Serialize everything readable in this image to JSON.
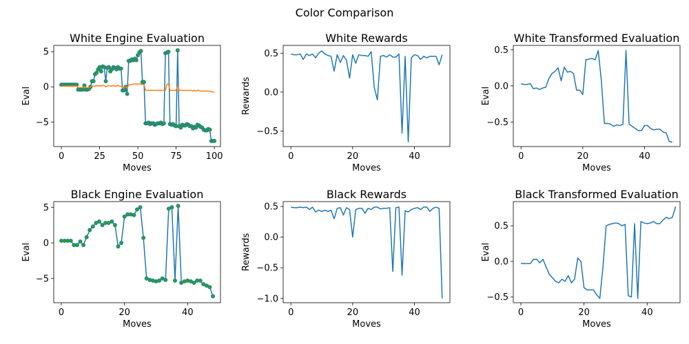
{
  "figure": {
    "suptitle": "Color Comparison"
  },
  "chart_data": [
    {
      "id": "white-engine",
      "type": "line",
      "title": "White Engine Evaluation",
      "xlabel": "Moves",
      "ylabel": "Eval",
      "xlim": [
        -5,
        104
      ],
      "ylim": [
        -8.5,
        5.9
      ],
      "xticks": [
        0,
        25,
        50,
        75,
        100
      ],
      "yticks": [
        -5,
        0,
        5
      ],
      "series": [
        {
          "color": "#1f77b4",
          "markers": true,
          "marker_fill": "#2ca02c",
          "values": [
            0.3,
            0.3,
            0.3,
            0.3,
            0.3,
            0.3,
            0.3,
            0.3,
            0.3,
            0.3,
            0.3,
            -0.4,
            -0.4,
            -0.4,
            -0.4,
            0.2,
            -0.4,
            -0.4,
            -0.3,
            0.0,
            0.8,
            0.8,
            1.8,
            2.0,
            2.5,
            2.8,
            2.2,
            2.9,
            2.8,
            0.8,
            2.7,
            2.8,
            2.2,
            2.5,
            2.8,
            2.7,
            2.5,
            2.8,
            2.6,
            2.6,
            -0.5,
            -0.5,
            0.0,
            -1.0,
            3.7,
            3.7,
            3.9,
            3.8,
            4.0,
            3.8,
            4.5,
            4.9,
            5.1,
            0.7,
            0.7,
            -5.2,
            -5.2,
            -5.1,
            -5.3,
            -5.2,
            -5.2,
            -5.4,
            -5.3,
            -5.2,
            -5.2,
            -5.1,
            -5.3,
            -5.2,
            4.8,
            4.9,
            5.0,
            -5.3,
            -5.4,
            -5.3,
            -5.5,
            -5.6,
            5.2,
            -5.6,
            -5.8,
            -5.4,
            -5.5,
            -5.5,
            -5.3,
            -5.4,
            -5.6,
            -5.6,
            -5.9,
            -5.7,
            -5.8,
            -5.4,
            -5.5,
            -5.7,
            -5.8,
            -6.1,
            -6.2,
            -6.2,
            -6.0,
            -6.1,
            -7.7,
            -7.7,
            -7.7
          ]
        },
        {
          "color": "#ff7f0e",
          "markers": false,
          "values": [
            0.1,
            0.1,
            0.1,
            0.1,
            0.1,
            0.1,
            0.1,
            0.1,
            0.1,
            0.1,
            0.1,
            -0.1,
            -0.1,
            -0.1,
            -0.1,
            0.0,
            -0.1,
            -0.1,
            -0.1,
            0.0,
            0.1,
            0.1,
            0.1,
            0.2,
            0.1,
            0.2,
            0.1,
            0.2,
            0.2,
            0.0,
            0.1,
            0.2,
            0.1,
            0.1,
            0.2,
            0.1,
            0.1,
            0.2,
            0.1,
            0.1,
            -0.1,
            -0.1,
            0.0,
            -0.2,
            0.3,
            0.3,
            0.3,
            0.4,
            0.4,
            0.4,
            0.4,
            0.4,
            0.4,
            0.3,
            0.3,
            -0.5,
            -0.5,
            -0.5,
            -0.5,
            -0.5,
            -0.5,
            -0.5,
            -0.5,
            -0.5,
            -0.5,
            -0.5,
            -0.5,
            -0.5,
            -0.5,
            0.4,
            0.4,
            -0.5,
            -0.5,
            -0.5,
            -0.5,
            -0.5,
            0.2,
            -0.5,
            -0.5,
            -0.5,
            -0.5,
            -0.5,
            -0.5,
            -0.5,
            -0.5,
            -0.5,
            -0.6,
            -0.5,
            -0.6,
            -0.5,
            -0.5,
            -0.6,
            -0.6,
            -0.6,
            -0.6,
            -0.6,
            -0.6,
            -0.6,
            -0.7,
            -0.7,
            -0.8
          ]
        }
      ]
    },
    {
      "id": "white-rewards",
      "type": "line",
      "title": "White Rewards",
      "xlabel": "Moves",
      "ylabel": "Rewards",
      "xlim": [
        -2.5,
        51.5
      ],
      "ylim": [
        -0.7,
        0.6
      ],
      "xticks": [
        0,
        20,
        40
      ],
      "yticks": [
        -0.5,
        0.0,
        0.5
      ],
      "series": [
        {
          "color": "#1f77b4",
          "markers": false,
          "values": [
            0.49,
            0.48,
            0.48,
            0.49,
            0.42,
            0.49,
            0.47,
            0.49,
            0.44,
            0.5,
            0.53,
            0.49,
            0.47,
            0.46,
            0.27,
            0.48,
            0.38,
            0.47,
            0.41,
            0.18,
            0.48,
            0.37,
            0.48,
            0.47,
            0.47,
            0.46,
            0.52,
            0.06,
            -0.1,
            0.46,
            0.47,
            0.45,
            0.48,
            0.45,
            0.45,
            0.49,
            -0.53,
            0.46,
            -0.64,
            0.44,
            0.48,
            0.47,
            0.42,
            0.46,
            0.44,
            0.46,
            0.46,
            0.46,
            0.35,
            0.48
          ]
        }
      ]
    },
    {
      "id": "white-transformed",
      "type": "line",
      "title": "White Transformed Evaluation",
      "xlabel": "Moves",
      "ylabel": "Eval",
      "xlim": [
        -2.5,
        51.5
      ],
      "ylim": [
        -0.84,
        0.56
      ],
      "xticks": [
        0,
        20,
        40
      ],
      "yticks": [
        -0.5,
        0.0,
        0.5
      ],
      "series": [
        {
          "color": "#1f77b4",
          "markers": false,
          "values": [
            0.03,
            0.02,
            0.02,
            0.03,
            -0.04,
            -0.03,
            -0.05,
            -0.03,
            -0.02,
            0.1,
            0.17,
            0.2,
            0.25,
            0.07,
            0.26,
            0.19,
            0.2,
            0.17,
            -0.06,
            -0.06,
            -0.12,
            0.36,
            0.37,
            0.38,
            0.36,
            0.49,
            0.08,
            -0.52,
            -0.52,
            -0.53,
            -0.56,
            -0.54,
            -0.55,
            -0.53,
            0.49,
            -0.53,
            -0.56,
            -0.59,
            -0.62,
            -0.62,
            -0.55,
            -0.55,
            -0.59,
            -0.61,
            -0.6,
            -0.6,
            -0.64,
            -0.65,
            -0.77,
            -0.78
          ]
        }
      ]
    },
    {
      "id": "black-engine",
      "type": "line",
      "title": "Black Engine Evaluation",
      "xlabel": "Moves",
      "ylabel": "Eval",
      "xlim": [
        -2.4,
        50.4
      ],
      "ylim": [
        -8.4,
        5.8
      ],
      "xticks": [
        0,
        20,
        40
      ],
      "yticks": [
        -5,
        0,
        5
      ],
      "series": [
        {
          "color": "#1f77b4",
          "markers": true,
          "marker_fill": "#2ca02c",
          "values": [
            0.3,
            0.3,
            0.3,
            0.3,
            -0.3,
            -0.3,
            0.2,
            -0.3,
            0.8,
            1.8,
            2.3,
            2.8,
            3.0,
            2.5,
            2.8,
            2.8,
            3.0,
            2.5,
            -0.5,
            0.0,
            3.7,
            4.0,
            4.0,
            3.9,
            4.7,
            5.0,
            0.7,
            -5.0,
            -5.2,
            -5.3,
            -5.4,
            -5.3,
            -5.0,
            -5.2,
            4.8,
            5.0,
            -5.3,
            5.2,
            -5.6,
            -5.4,
            -5.3,
            -5.4,
            -5.6,
            -5.3,
            -5.3,
            -5.8,
            -6.0,
            -6.2,
            -7.5
          ]
        }
      ]
    },
    {
      "id": "black-rewards",
      "type": "line",
      "title": "Black Rewards",
      "xlabel": "Moves",
      "ylabel": "Rewards",
      "xlim": [
        -2.5,
        51.5
      ],
      "ylim": [
        -1.07,
        0.58
      ],
      "xticks": [
        0,
        20,
        40
      ],
      "yticks": [
        -1.0,
        -0.5,
        0.0,
        0.5
      ],
      "series": [
        {
          "color": "#1f77b4",
          "markers": false,
          "values": [
            0.49,
            0.48,
            0.48,
            0.49,
            0.48,
            0.49,
            0.45,
            0.49,
            0.41,
            0.44,
            0.42,
            0.44,
            0.42,
            0.44,
            0.3,
            0.47,
            0.48,
            0.36,
            0.48,
            0.45,
            0.0,
            0.45,
            0.47,
            0.47,
            0.39,
            0.47,
            0.45,
            0.49,
            0.49,
            0.46,
            0.47,
            0.47,
            0.48,
            -0.56,
            0.48,
            0.49,
            -0.62,
            0.43,
            0.41,
            0.45,
            0.47,
            0.48,
            0.45,
            0.49,
            0.49,
            0.42,
            0.47,
            0.49,
            0.47,
            -1.0
          ]
        }
      ]
    },
    {
      "id": "black-transformed",
      "type": "line",
      "title": "Black Transformed Evaluation",
      "xlabel": "Moves",
      "ylabel": "Eval",
      "xlim": [
        -2.4,
        50.4
      ],
      "ylim": [
        -0.58,
        0.84
      ],
      "xticks": [
        0,
        20,
        40
      ],
      "yticks": [
        -0.5,
        0.0,
        0.5
      ],
      "series": [
        {
          "color": "#1f77b4",
          "markers": false,
          "values": [
            -0.03,
            -0.03,
            -0.03,
            -0.03,
            0.03,
            0.03,
            -0.02,
            0.03,
            -0.08,
            -0.18,
            -0.23,
            -0.28,
            -0.3,
            -0.25,
            -0.28,
            -0.2,
            -0.3,
            -0.25,
            0.05,
            0.0,
            -0.37,
            -0.4,
            -0.4,
            -0.4,
            -0.47,
            -0.52,
            -0.07,
            0.5,
            0.52,
            0.53,
            0.54,
            0.53,
            0.5,
            0.52,
            -0.48,
            -0.5,
            0.53,
            -0.52,
            0.56,
            0.54,
            0.53,
            0.54,
            0.56,
            0.53,
            0.53,
            0.58,
            0.62,
            0.6,
            0.62,
            0.77
          ]
        }
      ]
    }
  ]
}
